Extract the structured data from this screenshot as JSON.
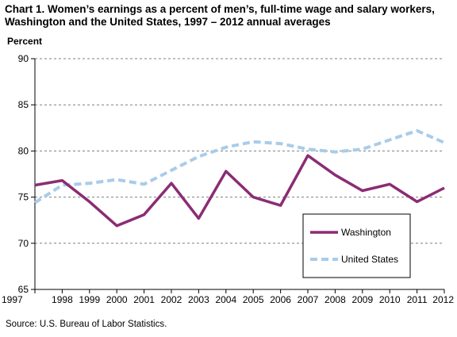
{
  "title_line1": "Chart 1. Women’s earnings as a percent of men’s, full-time wage and salary workers,",
  "title_line2": "Washington and the United States, 1997 – 2012 annual averages",
  "source": "Source: U.S.  Bureau of Labor Statistics.",
  "chart_data": {
    "type": "line",
    "title": "Chart 1. Women’s earnings as a percent of men’s, full-time wage and salary workers, Washington and the United States, 1997 – 2012 annual averages",
    "xlabel": "",
    "ylabel": "Percent",
    "x": [
      "1997",
      "1998",
      "1999",
      "2000",
      "2001",
      "2002",
      "2003",
      "2004",
      "2005",
      "2006",
      "2007",
      "2008",
      "2009",
      "2010",
      "2011",
      "2012"
    ],
    "ylim": [
      65,
      90
    ],
    "yticks": [
      65,
      70,
      75,
      80,
      85,
      90
    ],
    "grid": "horizontal dashed",
    "legend_position": "bottom-right inside plot",
    "series": [
      {
        "name": "Washington",
        "color": "#8B2C74",
        "style": "solid",
        "values": [
          76.3,
          76.8,
          74.5,
          71.9,
          73.1,
          76.5,
          72.7,
          77.8,
          75.0,
          74.1,
          79.5,
          77.4,
          75.7,
          76.4,
          74.5,
          76.0
        ]
      },
      {
        "name": "United States",
        "color": "#A9CCE9",
        "style": "dashed",
        "values": [
          74.4,
          76.3,
          76.5,
          76.9,
          76.4,
          77.9,
          79.4,
          80.4,
          81.0,
          80.8,
          80.2,
          79.9,
          80.2,
          81.2,
          82.2,
          80.9
        ]
      }
    ]
  }
}
